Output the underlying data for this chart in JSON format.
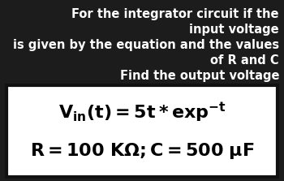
{
  "bg_color": "#1c1c1c",
  "box_color": "#ffffff",
  "box_edge_color": "#111111",
  "box_text_color": "#000000",
  "header_text_color": "#ffffff",
  "header_lines": [
    "For the integrator circuit if the",
    "input voltage",
    "is given by the equation and the values",
    "of R and C",
    "Find the output voltage"
  ],
  "header_aligns": [
    "right",
    "right",
    "right",
    "right",
    "right"
  ],
  "eq1": "$\\mathbf{V_{in}(t) = 5t * exp^{-t}}$",
  "eq2": "$\\mathbf{R = 100\\ K\\Omega; C = 500\\ \\mu F}$",
  "header_fontsize": 10.5,
  "eq_fontsize": 16
}
